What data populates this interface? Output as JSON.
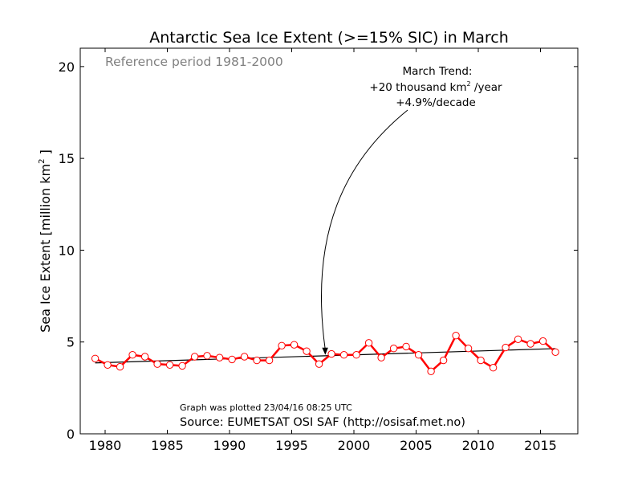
{
  "chart_data": {
    "type": "line",
    "title": "Antarctic Sea Ice Extent (>=15% SIC) in March",
    "ylabel_main": "Sea Ice Extent [million km",
    "ylabel_sup": "2",
    "ylabel_end": " ]",
    "xlim": [
      1978,
      2018
    ],
    "ylim": [
      0,
      21
    ],
    "x_ticks": [
      1980,
      1985,
      1990,
      1995,
      2000,
      2005,
      2010,
      2015
    ],
    "y_ticks": [
      0,
      5,
      10,
      15,
      20
    ],
    "grid": false,
    "series": [
      {
        "color": "#ff0000",
        "marker": "circle-open",
        "x": [
          1979.2,
          1980.2,
          1981.2,
          1982.2,
          1983.2,
          1984.2,
          1985.2,
          1986.2,
          1987.2,
          1988.2,
          1989.2,
          1990.2,
          1991.2,
          1992.2,
          1993.2,
          1994.2,
          1995.2,
          1996.2,
          1997.2,
          1998.2,
          1999.2,
          2000.2,
          2001.2,
          2002.2,
          2003.2,
          2004.2,
          2005.2,
          2006.2,
          2007.2,
          2008.2,
          2009.2,
          2010.2,
          2011.2,
          2012.2,
          2013.2,
          2014.2,
          2015.2,
          2016.2
        ],
        "values": [
          4.1,
          3.75,
          3.65,
          4.3,
          4.2,
          3.8,
          3.75,
          3.7,
          4.2,
          4.25,
          4.15,
          4.05,
          4.2,
          4.0,
          4.0,
          4.8,
          4.85,
          4.5,
          3.8,
          4.35,
          4.3,
          4.3,
          4.95,
          4.15,
          4.65,
          4.75,
          4.3,
          3.4,
          4.0,
          5.35,
          4.65,
          4.0,
          3.6,
          4.7,
          5.15,
          4.9,
          5.05,
          4.45
        ]
      }
    ],
    "trend_line": {
      "x": [
        1979.2,
        2016.2
      ],
      "values": [
        3.86,
        4.64
      ],
      "color": "#000000"
    },
    "annotations": {
      "reference": "Reference period 1981-2000",
      "trend_title": "March Trend:",
      "trend_rate_prefix": "+20 thousand km",
      "trend_rate_sup": "2",
      "trend_rate_suffix": " /year",
      "trend_decade": "+4.9%/decade",
      "arrow_target": {
        "x": 1997.7,
        "y": 4.3
      },
      "plotted": "Graph was plotted 23/04/16 08:25 UTC",
      "source": "Source: EUMETSAT OSI SAF (http://osisaf.met.no)"
    }
  }
}
